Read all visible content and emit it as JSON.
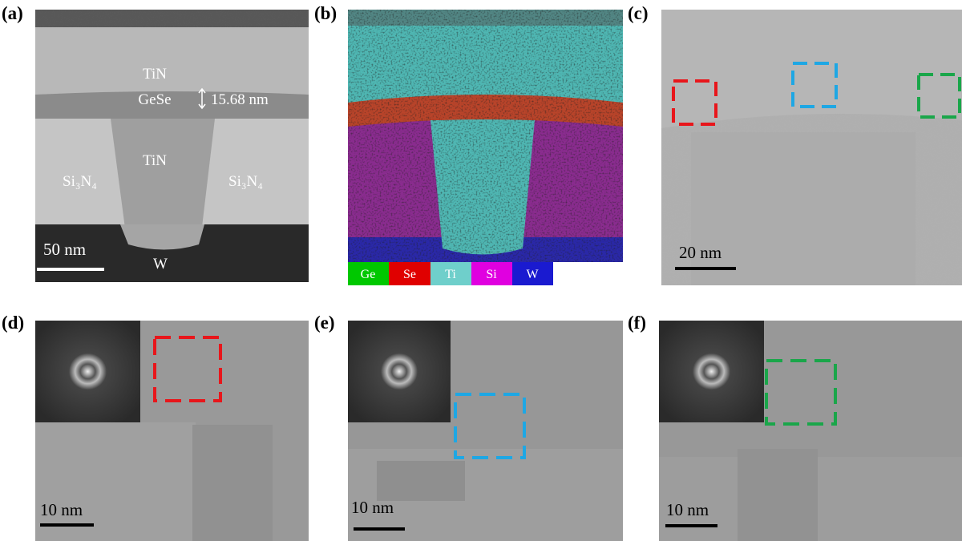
{
  "panels": [
    {
      "label": "(a)",
      "annotations": {
        "tin_top": "TiN",
        "gese": "GeSe",
        "thickness": "15.68 nm",
        "tin_plug": "TiN",
        "si3n4_left": "Si₃N₄",
        "si3n4_right": "Si₃N₄",
        "w": "W"
      },
      "scale_bar": "50 nm"
    },
    {
      "label": "(b)",
      "legend": [
        "Ge",
        "Se",
        "Ti",
        "Si",
        "W"
      ]
    },
    {
      "label": "(c)",
      "scale_bar": "20 nm"
    },
    {
      "label": "(d)",
      "scale_bar": "10 nm"
    },
    {
      "label": "(e)",
      "scale_bar": "10 nm"
    },
    {
      "label": "(f)",
      "scale_bar": "10 nm"
    }
  ]
}
